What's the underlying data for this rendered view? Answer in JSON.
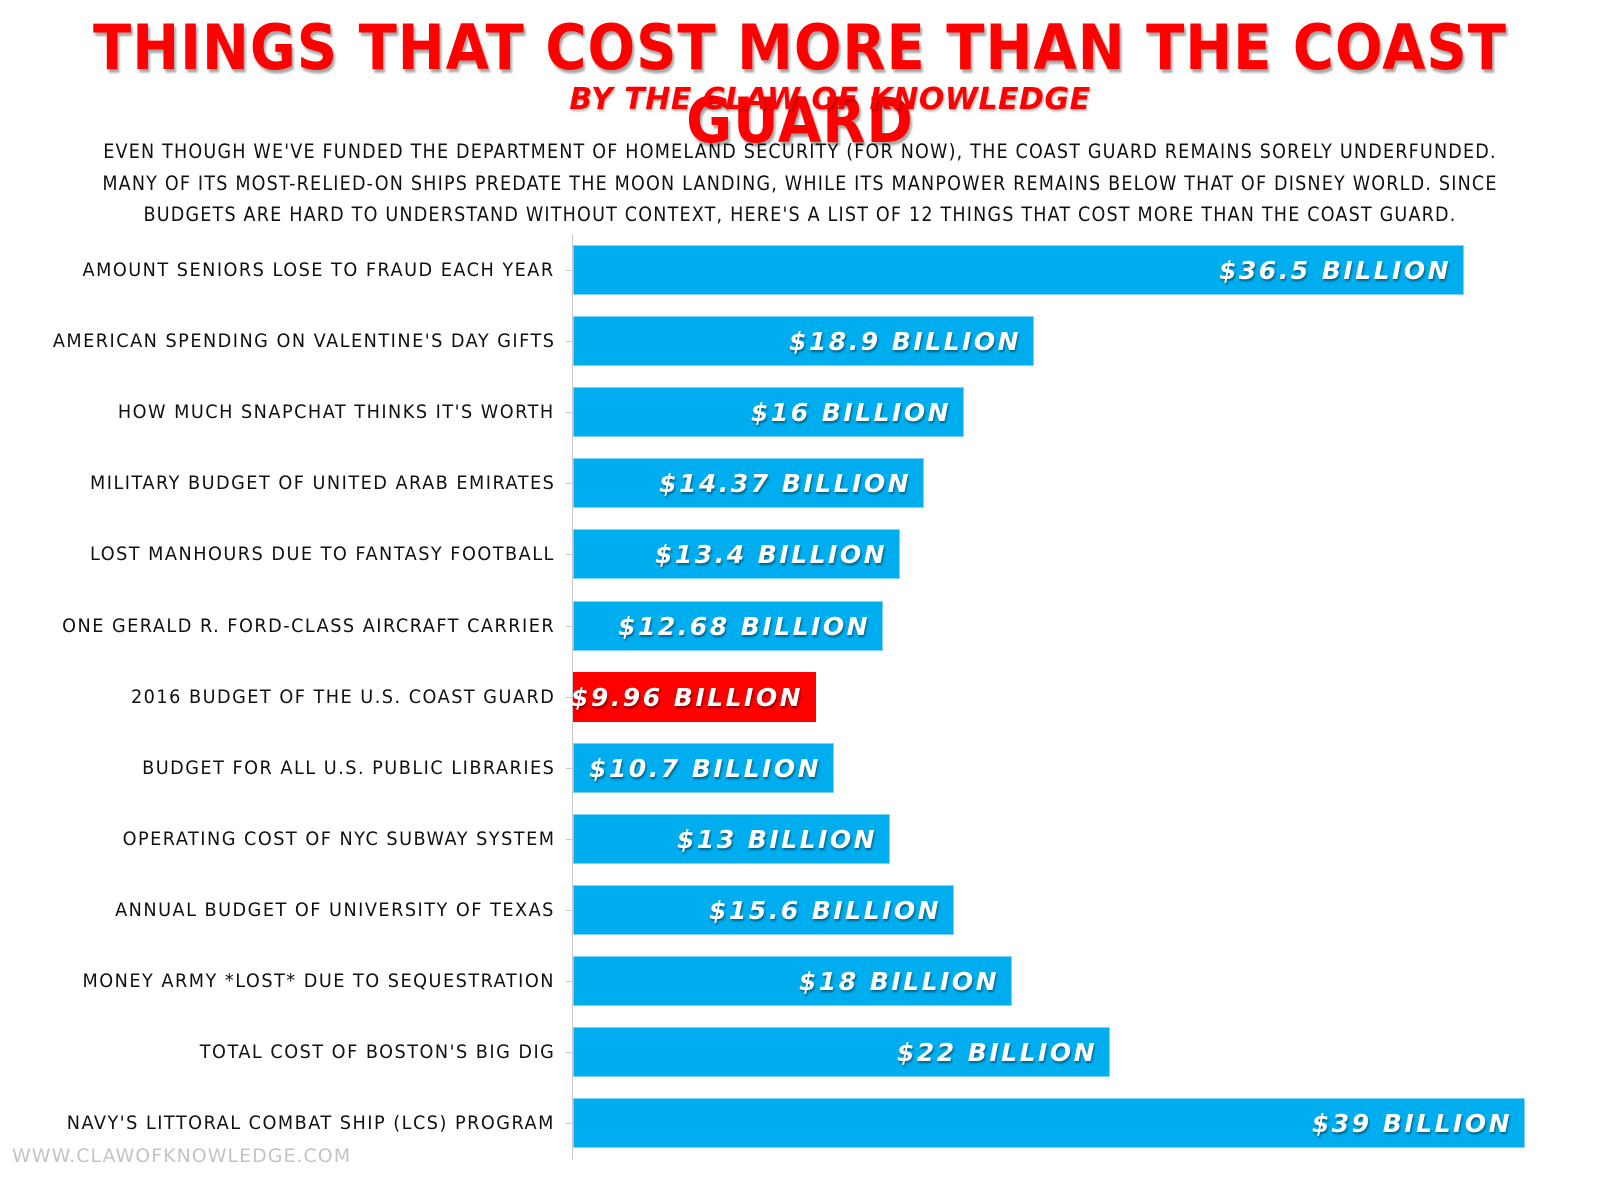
{
  "header": {
    "title": "THINGS THAT COST MORE THAN THE COAST GUARD",
    "byline": "BY THE CLAW OF KNOWLEDGE",
    "intro_lines": [
      "Even though we've funded the Department of Homeland Security (for now), the Coast Guard remains sorely underfunded.",
      "Many of its most-relied-on ships predate the moon landing, while its manpower remains below that of Disney World. Since",
      "budgets are hard to understand without context, here's a list of 12 things that cost more than the Coast Guard."
    ]
  },
  "colors": {
    "title": "#ff0000",
    "bar": "#00aeef",
    "highlight_bar": "#ff0000",
    "value_text": "#ffffff",
    "label_text": "#111111",
    "footer_text": "#c4c4c4"
  },
  "footer": {
    "url": "WWW.CLAWOFKNOWLEDGE.COM"
  },
  "chart_data": {
    "type": "bar",
    "orientation": "horizontal",
    "title": "Things That Cost More Than the Coast Guard",
    "subtitle": "By the Claw of Knowledge",
    "xlabel": "",
    "ylabel": "",
    "unit": "USD billions",
    "xlim": [
      0,
      39
    ],
    "grid": false,
    "legend": null,
    "categories": [
      "Amount seniors lose to fraud each year",
      "American spending on Valentine's Day gifts",
      "How much Snapchat thinks it's worth",
      "Military budget of United Arab Emirates",
      "Lost manhours due to fantasy football",
      "One Gerald R. Ford-class aircraft carrier",
      "2016 budget of the U.S. Coast Guard",
      "Budget for all U.S. public libraries",
      "Operating cost of NYC subway system",
      "Annual budget of University of Texas",
      "Money Army *lost* due to sequestration",
      "Total cost of Boston's Big Dig",
      "Navy's Littoral Combat Ship (LCS) program"
    ],
    "values": [
      36.5,
      18.9,
      16,
      14.37,
      13.4,
      12.68,
      9.96,
      10.7,
      13,
      15.6,
      18,
      22,
      39
    ],
    "value_labels": [
      "$36.5 BILLION",
      "$18.9 BILLION",
      "$16 BILLION",
      "$14.37 BILLION",
      "$13.4 BILLION",
      "$12.68 BILLION",
      "$9.96 BILLION",
      "$10.7 BILLION",
      "$13 BILLION",
      "$15.6 BILLION",
      "$18 BILLION",
      "$22 BILLION",
      "$39 BILLION"
    ],
    "highlight_index": 6
  }
}
